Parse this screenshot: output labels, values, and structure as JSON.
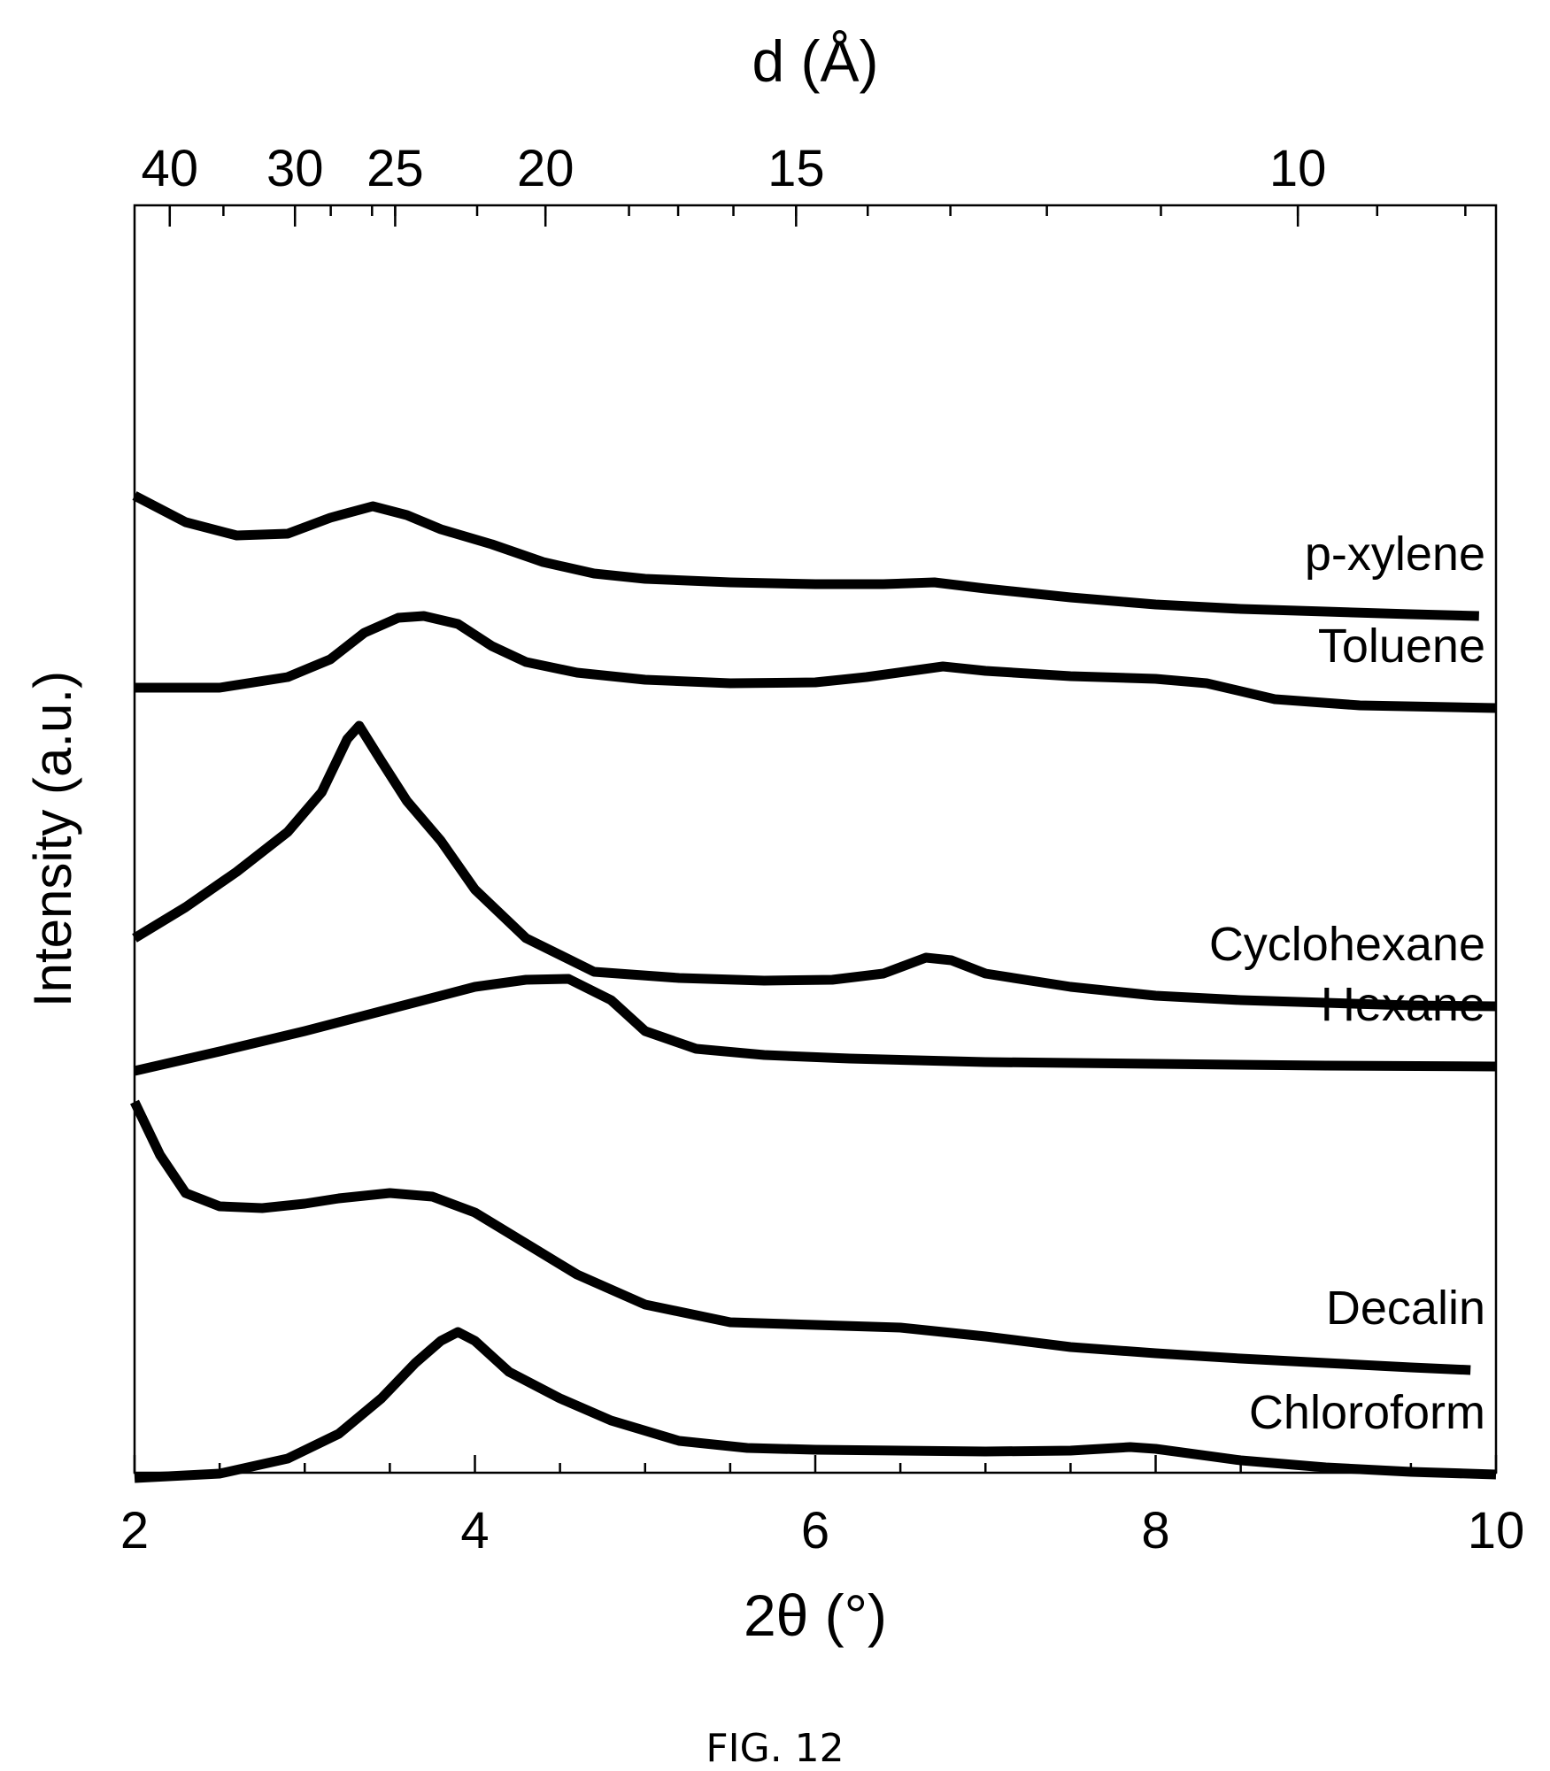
{
  "chart_data": {
    "type": "line",
    "xlabel": "2θ (°)",
    "ylabel": "Intensity (a.u.)",
    "top_axis_label": "d (Å)",
    "xlim": [
      2,
      10
    ],
    "x_ticks": [
      2,
      4,
      6,
      8,
      10
    ],
    "x_tick_labels": [
      "2",
      "4",
      "6",
      "8",
      "10"
    ],
    "top_ticks": [
      {
        "d": 40,
        "label": "40"
      },
      {
        "d": 30,
        "label": "30"
      },
      {
        "d": 25,
        "label": "25"
      },
      {
        "d": 20,
        "label": "20"
      },
      {
        "d": 15,
        "label": "15"
      },
      {
        "d": 10,
        "label": "10"
      }
    ],
    "y_axis_values_shown": false,
    "grid": false,
    "series": [
      {
        "name": "p-xylene",
        "x": [
          2.0,
          2.3,
          2.6,
          2.9,
          3.15,
          3.4,
          3.6,
          3.8,
          4.1,
          4.4,
          4.7,
          5.0,
          5.5,
          6.0,
          6.4,
          6.7,
          7.0,
          7.5,
          8.0,
          8.5,
          9.0,
          9.5,
          9.9
        ],
        "y": [
          10.0,
          9.7,
          9.55,
          9.57,
          9.75,
          9.88,
          9.78,
          9.62,
          9.45,
          9.25,
          9.12,
          9.06,
          9.02,
          9.0,
          9.0,
          9.02,
          8.95,
          8.85,
          8.77,
          8.72,
          8.69,
          8.66,
          8.64
        ]
      },
      {
        "name": "Toluene",
        "x": [
          2.0,
          2.5,
          2.9,
          3.15,
          3.35,
          3.55,
          3.7,
          3.9,
          4.1,
          4.3,
          4.6,
          5.0,
          5.5,
          6.0,
          6.3,
          6.6,
          6.75,
          7.0,
          7.5,
          8.0,
          8.3,
          8.7,
          9.2,
          10.0
        ],
        "y": [
          7.83,
          7.83,
          7.95,
          8.15,
          8.45,
          8.62,
          8.64,
          8.55,
          8.3,
          8.12,
          8.0,
          7.92,
          7.88,
          7.89,
          7.95,
          8.03,
          8.07,
          8.02,
          7.96,
          7.93,
          7.88,
          7.7,
          7.63,
          7.6
        ]
      },
      {
        "name": "Cyclohexane",
        "x": [
          2.0,
          2.3,
          2.6,
          2.9,
          3.1,
          3.25,
          3.32,
          3.45,
          3.6,
          3.8,
          4.0,
          4.3,
          4.7,
          5.2,
          5.7,
          6.1,
          6.4,
          6.65,
          6.8,
          7.0,
          7.5,
          8.0,
          8.5,
          9.0,
          9.5,
          10.0
        ],
        "y": [
          5.0,
          5.35,
          5.75,
          6.2,
          6.65,
          7.25,
          7.4,
          7.0,
          6.55,
          6.1,
          5.55,
          5.0,
          4.62,
          4.55,
          4.52,
          4.53,
          4.6,
          4.78,
          4.75,
          4.6,
          4.45,
          4.35,
          4.3,
          4.27,
          4.24,
          4.23
        ]
      },
      {
        "name": "Hexane",
        "x": [
          2.0,
          2.5,
          3.0,
          3.5,
          4.0,
          4.3,
          4.55,
          4.8,
          5.0,
          5.3,
          5.7,
          6.2,
          7.0,
          8.0,
          9.0,
          10.0
        ],
        "y": [
          3.5,
          3.72,
          3.95,
          4.2,
          4.45,
          4.53,
          4.54,
          4.3,
          3.95,
          3.75,
          3.68,
          3.64,
          3.6,
          3.58,
          3.56,
          3.55
        ]
      },
      {
        "name": "Decalin",
        "x": [
          2.0,
          2.15,
          2.3,
          2.5,
          2.75,
          3.0,
          3.2,
          3.5,
          3.75,
          4.0,
          4.3,
          4.6,
          5.0,
          5.5,
          6.0,
          6.5,
          7.0,
          7.5,
          8.0,
          8.5,
          9.0,
          9.5,
          9.85
        ],
        "y": [
          3.15,
          2.55,
          2.12,
          1.97,
          1.95,
          2.0,
          2.06,
          2.12,
          2.08,
          1.9,
          1.55,
          1.2,
          0.86,
          0.66,
          0.63,
          0.6,
          0.5,
          0.38,
          0.31,
          0.25,
          0.2,
          0.15,
          0.12
        ]
      },
      {
        "name": "Chloroform",
        "x": [
          2.0,
          2.5,
          2.9,
          3.2,
          3.45,
          3.65,
          3.8,
          3.9,
          4.0,
          4.2,
          4.5,
          4.8,
          5.2,
          5.6,
          6.0,
          7.0,
          7.5,
          7.85,
          8.0,
          8.5,
          9.0,
          9.5,
          10.0
        ],
        "y": [
          -1.1,
          -1.05,
          -0.88,
          -0.6,
          -0.2,
          0.2,
          0.45,
          0.55,
          0.45,
          0.1,
          -0.2,
          -0.45,
          -0.68,
          -0.76,
          -0.78,
          -0.8,
          -0.79,
          -0.75,
          -0.77,
          -0.9,
          -0.98,
          -1.03,
          -1.06
        ]
      }
    ]
  },
  "caption": "FIG. 12"
}
